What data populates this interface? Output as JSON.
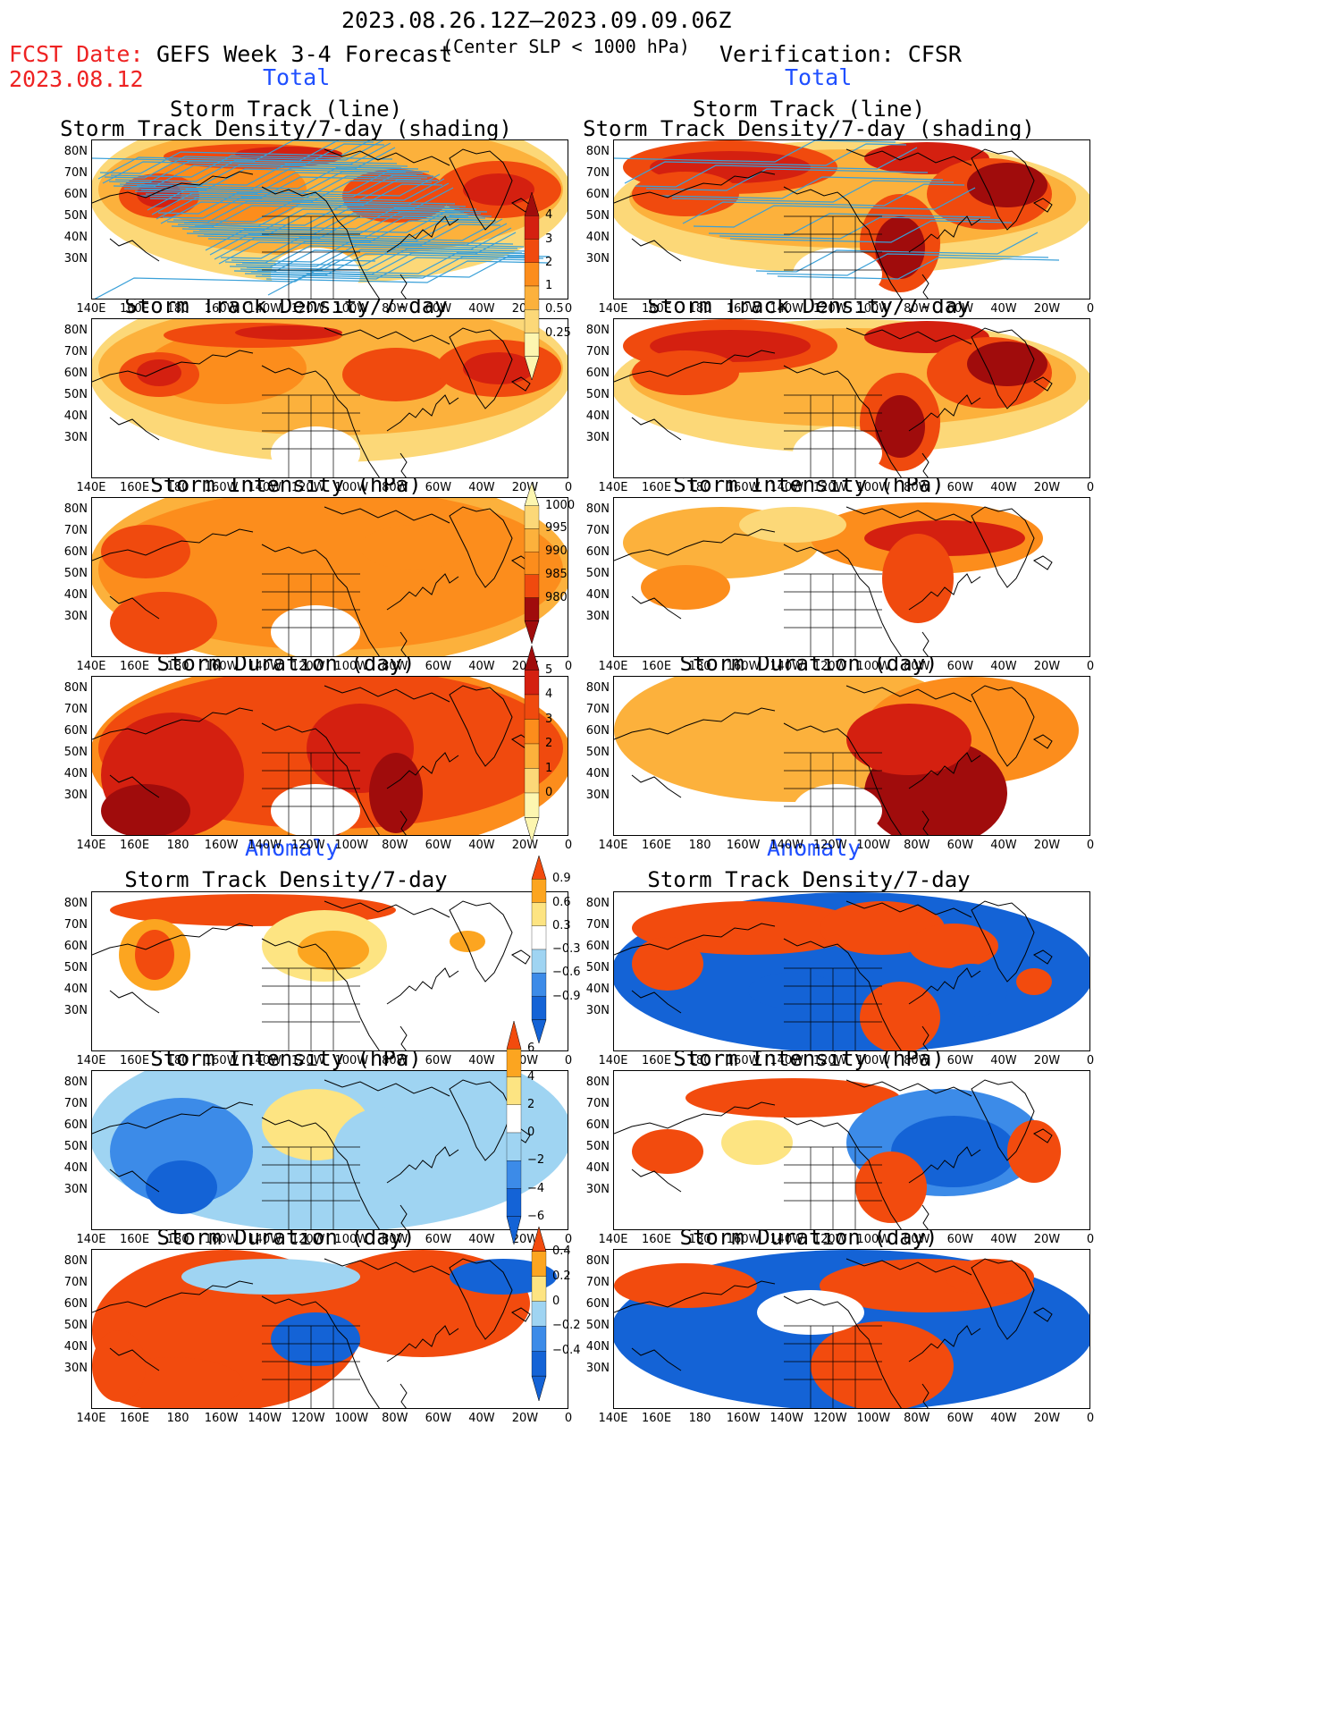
{
  "header": {
    "period": "2023.08.26.12Z–2023.09.09.06Z",
    "fcst_label": "FCST Date:",
    "fcst_date": "2023.08.12",
    "left_title": "GEFS Week 3-4 Forecast",
    "center_note": "(Center SLP < 1000 hPa)",
    "right_title": "Verification: CFSR",
    "total_left": "Total",
    "total_right": "Total",
    "anomaly_left": "Anomaly",
    "anomaly_right": "Anomaly"
  },
  "titles": {
    "r1_line1": "Storm Track (line)",
    "r1_line2": "Storm Track Density/7-day (shading)",
    "density": "Storm Track Density/7-day",
    "intensity": "Storm Intensity (hPa)",
    "duration": "Storm Duration (day)"
  },
  "axes": {
    "lat": [
      "80N",
      "70N",
      "60N",
      "50N",
      "40N",
      "30N"
    ],
    "lon": [
      "140E",
      "160E",
      "180",
      "160W",
      "140W",
      "120W",
      "100W",
      "80W",
      "60W",
      "40W",
      "20W",
      "0"
    ]
  },
  "colorbars": {
    "density": [
      "4",
      "3",
      "2",
      "1",
      "0.5",
      "0.25"
    ],
    "intensity": [
      "1000",
      "995",
      "990",
      "985",
      "980"
    ],
    "duration": [
      "5",
      "4",
      "3",
      "2",
      "1",
      "0"
    ],
    "density_anom": [
      "0.9",
      "0.6",
      "0.3",
      "−0.3",
      "−0.6",
      "−0.9"
    ],
    "intensity_anom": [
      "6",
      "4",
      "2",
      "0",
      "−2",
      "−4",
      "−6"
    ],
    "duration_anom": [
      "0.4",
      "0.2",
      "0",
      "−0.2",
      "−0.4"
    ]
  },
  "colors": {
    "total_scale": [
      "#fdf6b0",
      "#fcd878",
      "#fcb13c",
      "#fc8d1c",
      "#f04a0e",
      "#d42010",
      "#a00c0c"
    ],
    "anom_scale": [
      "#1463d6",
      "#3c8be8",
      "#9fd4f2",
      "#ffffff",
      "#fde482",
      "#fca520",
      "#f24b0e"
    ],
    "track_line": "#3aa0d8",
    "title_red": "#ee2222",
    "title_blue": "#1f4fff"
  }
}
